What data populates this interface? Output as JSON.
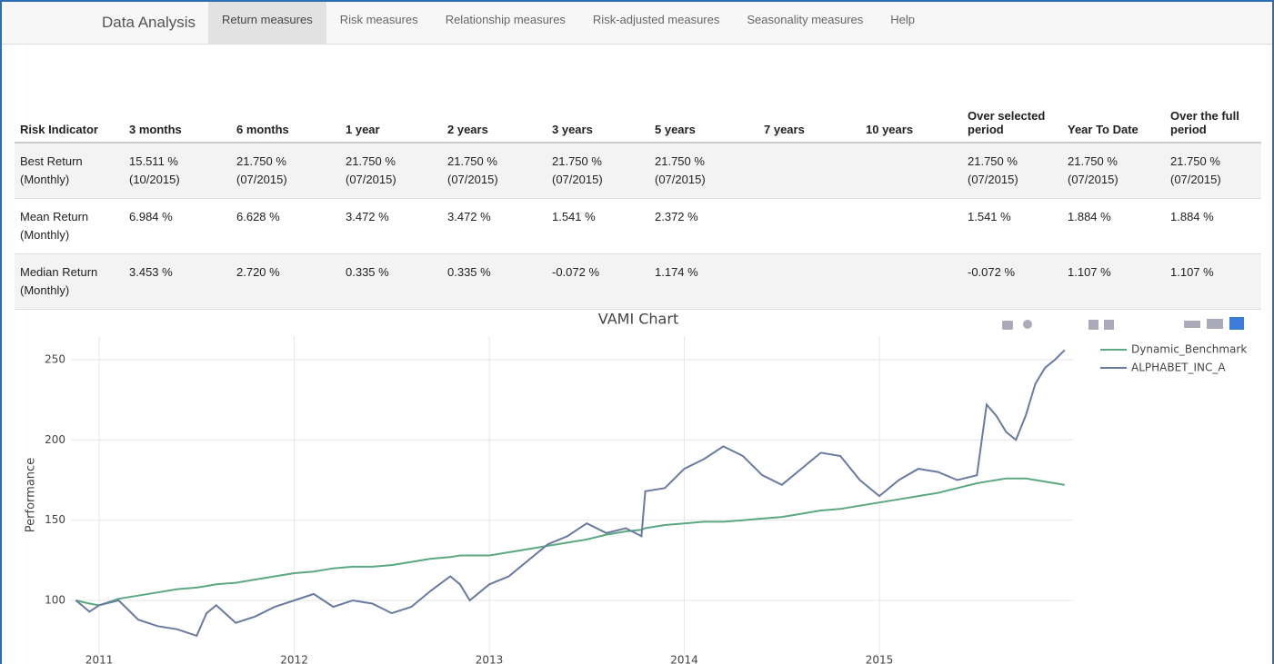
{
  "nav": {
    "brand": "Data Analysis",
    "tabs": [
      "Return measures",
      "Risk measures",
      "Relationship measures",
      "Risk-adjusted measures",
      "Seasonality measures",
      "Help"
    ]
  },
  "table": {
    "headers": [
      "Risk Indicator",
      "3 months",
      "6 months",
      "1 year",
      "2 years",
      "3 years",
      "5 years",
      "7 years",
      "10 years",
      "Over selected period",
      "Year To Date",
      "Over the full period"
    ],
    "rows": [
      [
        "Best Return (Monthly)",
        "15.511 %\n(10/2015)",
        "21.750 %\n(07/2015)",
        "21.750 %\n(07/2015)",
        "21.750 %\n(07/2015)",
        "21.750 %\n(07/2015)",
        "21.750 %\n(07/2015)",
        null,
        null,
        "21.750 %\n(07/2015)",
        "21.750 %\n(07/2015)",
        "21.750 %\n(07/2015)"
      ],
      [
        "Mean Return (Monthly)",
        "6.984 %",
        "6.628 %",
        "3.472 %",
        "3.472 %",
        "1.541 %",
        "2.372 %",
        null,
        null,
        "1.541 %",
        "1.884 %",
        "1.884 %"
      ],
      [
        "Median Return (Monthly)",
        "3.453 %",
        "2.720 %",
        "0.335 %",
        "0.335 %",
        "-0.072 %",
        "1.174 %",
        null,
        null,
        "-0.072 %",
        "1.107 %",
        "1.107 %"
      ]
    ]
  },
  "chart_data": {
    "type": "line",
    "title": "VAMI Chart",
    "ylabel": "Performance",
    "x": [
      2010.88,
      2010.95,
      2011.0,
      2011.1,
      2011.2,
      2011.3,
      2011.4,
      2011.5,
      2011.55,
      2011.6,
      2011.7,
      2011.8,
      2011.9,
      2012.0,
      2012.1,
      2012.2,
      2012.3,
      2012.4,
      2012.5,
      2012.6,
      2012.7,
      2012.8,
      2012.85,
      2012.9,
      2013.0,
      2013.1,
      2013.2,
      2013.3,
      2013.4,
      2013.5,
      2013.6,
      2013.7,
      2013.78,
      2013.8,
      2013.9,
      2014.0,
      2014.1,
      2014.2,
      2014.3,
      2014.4,
      2014.5,
      2014.6,
      2014.7,
      2014.8,
      2014.9,
      2015.0,
      2015.1,
      2015.2,
      2015.3,
      2015.4,
      2015.5,
      2015.55,
      2015.6,
      2015.65,
      2015.7,
      2015.75,
      2015.8,
      2015.85,
      2015.9,
      2015.95
    ],
    "series": [
      {
        "name": "Dynamic_Benchmark",
        "color": "#5ba882",
        "values": [
          100,
          98,
          97,
          101,
          103,
          105,
          107,
          108,
          109,
          110,
          111,
          113,
          115,
          117,
          118,
          120,
          121,
          121,
          122,
          124,
          126,
          127,
          128,
          128,
          128,
          130,
          132,
          134,
          136,
          138,
          141,
          143,
          144,
          145,
          147,
          148,
          149,
          149,
          150,
          151,
          152,
          154,
          156,
          157,
          159,
          161,
          163,
          165,
          167,
          170,
          173,
          174,
          175,
          176,
          176,
          176,
          175,
          174,
          173,
          172
        ]
      },
      {
        "name": "ALPHABET_INC_A",
        "color": "#6b7aa1",
        "values": [
          100,
          93,
          97,
          100,
          88,
          84,
          82,
          78,
          92,
          97,
          86,
          90,
          96,
          100,
          104,
          96,
          100,
          98,
          92,
          96,
          106,
          115,
          110,
          100,
          110,
          115,
          125,
          135,
          140,
          148,
          142,
          145,
          140,
          168,
          170,
          182,
          188,
          196,
          190,
          178,
          172,
          182,
          192,
          190,
          175,
          165,
          175,
          182,
          180,
          175,
          178,
          222,
          215,
          205,
          200,
          215,
          235,
          245,
          250,
          256
        ]
      }
    ],
    "xlim": [
      2010.855,
      2015.993
    ],
    "xticks": [
      2011,
      2012,
      2013,
      2014,
      2015
    ],
    "ylim": [
      66.6,
      264.7
    ],
    "yticks": [
      100,
      150,
      200,
      250
    ],
    "grid": true
  }
}
